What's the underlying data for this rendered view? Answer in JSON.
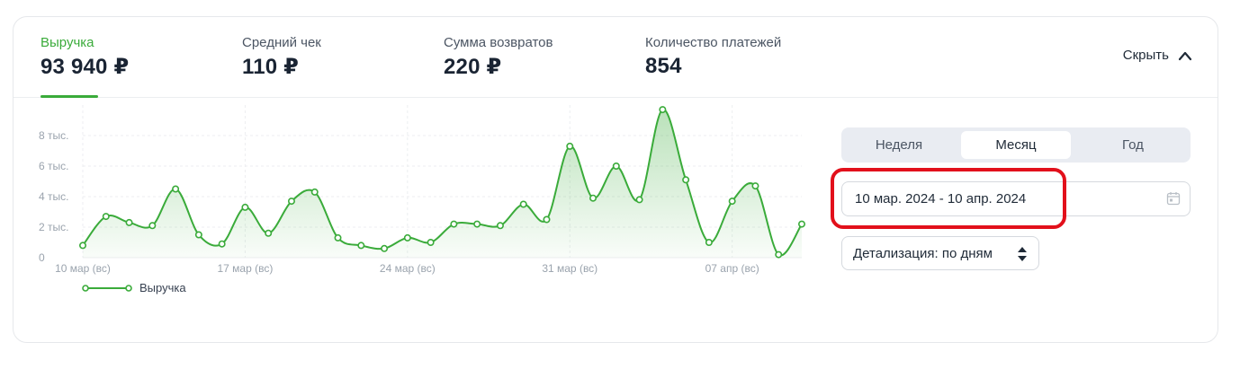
{
  "metrics": [
    {
      "label": "Выручка",
      "value": "93 940 ₽",
      "active": true
    },
    {
      "label": "Средний чек",
      "value": "110 ₽",
      "active": false
    },
    {
      "label": "Сумма возвратов",
      "value": "220 ₽",
      "active": false
    },
    {
      "label": "Количество платежей",
      "value": "854",
      "active": false
    }
  ],
  "hide_toggle": {
    "label": "Скрыть",
    "icon": "chevron-up-icon"
  },
  "period_tabs": [
    {
      "label": "Неделя",
      "active": false
    },
    {
      "label": "Месяц",
      "active": true
    },
    {
      "label": "Год",
      "active": false
    }
  ],
  "date_range": {
    "value": "10 мар. 2024 - 10 апр. 2024",
    "icon": "calendar-icon"
  },
  "detail_select": {
    "label": "Детализация: по дням",
    "icon": "sort-arrows-icon"
  },
  "colors": {
    "accent": "#3aab3a",
    "highlight": "#e2101b"
  },
  "chart_data": {
    "type": "area",
    "x": [
      "10 мар",
      "11 мар",
      "12 мар",
      "13 мар",
      "14 мар",
      "15 мар",
      "16 мар",
      "17 мар",
      "18 мар",
      "19 мар",
      "20 мар",
      "21 мар",
      "22 мар",
      "23 мар",
      "24 мар",
      "25 мар",
      "26 мар",
      "27 мар",
      "28 мар",
      "29 мар",
      "30 мар",
      "31 мар",
      "01 апр",
      "02 апр",
      "03 апр",
      "04 апр",
      "05 апр",
      "06 апр",
      "07 апр",
      "08 апр",
      "09 апр",
      "10 апр"
    ],
    "series": [
      {
        "name": "Выручка",
        "values": [
          800,
          2700,
          2300,
          2100,
          4500,
          1500,
          900,
          3300,
          1600,
          3700,
          4300,
          1300,
          800,
          600,
          1300,
          1000,
          2200,
          2200,
          2100,
          3500,
          2500,
          7300,
          3900,
          6000,
          3800,
          9700,
          5100,
          1000,
          3700,
          4700,
          200,
          2200
        ]
      }
    ],
    "x_tick_labels": [
      "10 мар (вс)",
      "17 мар (вс)",
      "24 мар (вс)",
      "31 мар (вс)",
      "07 апр (вс)"
    ],
    "x_tick_index": [
      0,
      7,
      14,
      21,
      28
    ],
    "y_ticks": [
      0,
      2000,
      4000,
      6000,
      8000
    ],
    "y_tick_labels": [
      "0",
      "2 тыс.",
      "4 тыс.",
      "6 тыс.",
      "8 тыс."
    ],
    "ylim": [
      0,
      10000
    ],
    "grid": true,
    "legend": "bottom-left"
  }
}
